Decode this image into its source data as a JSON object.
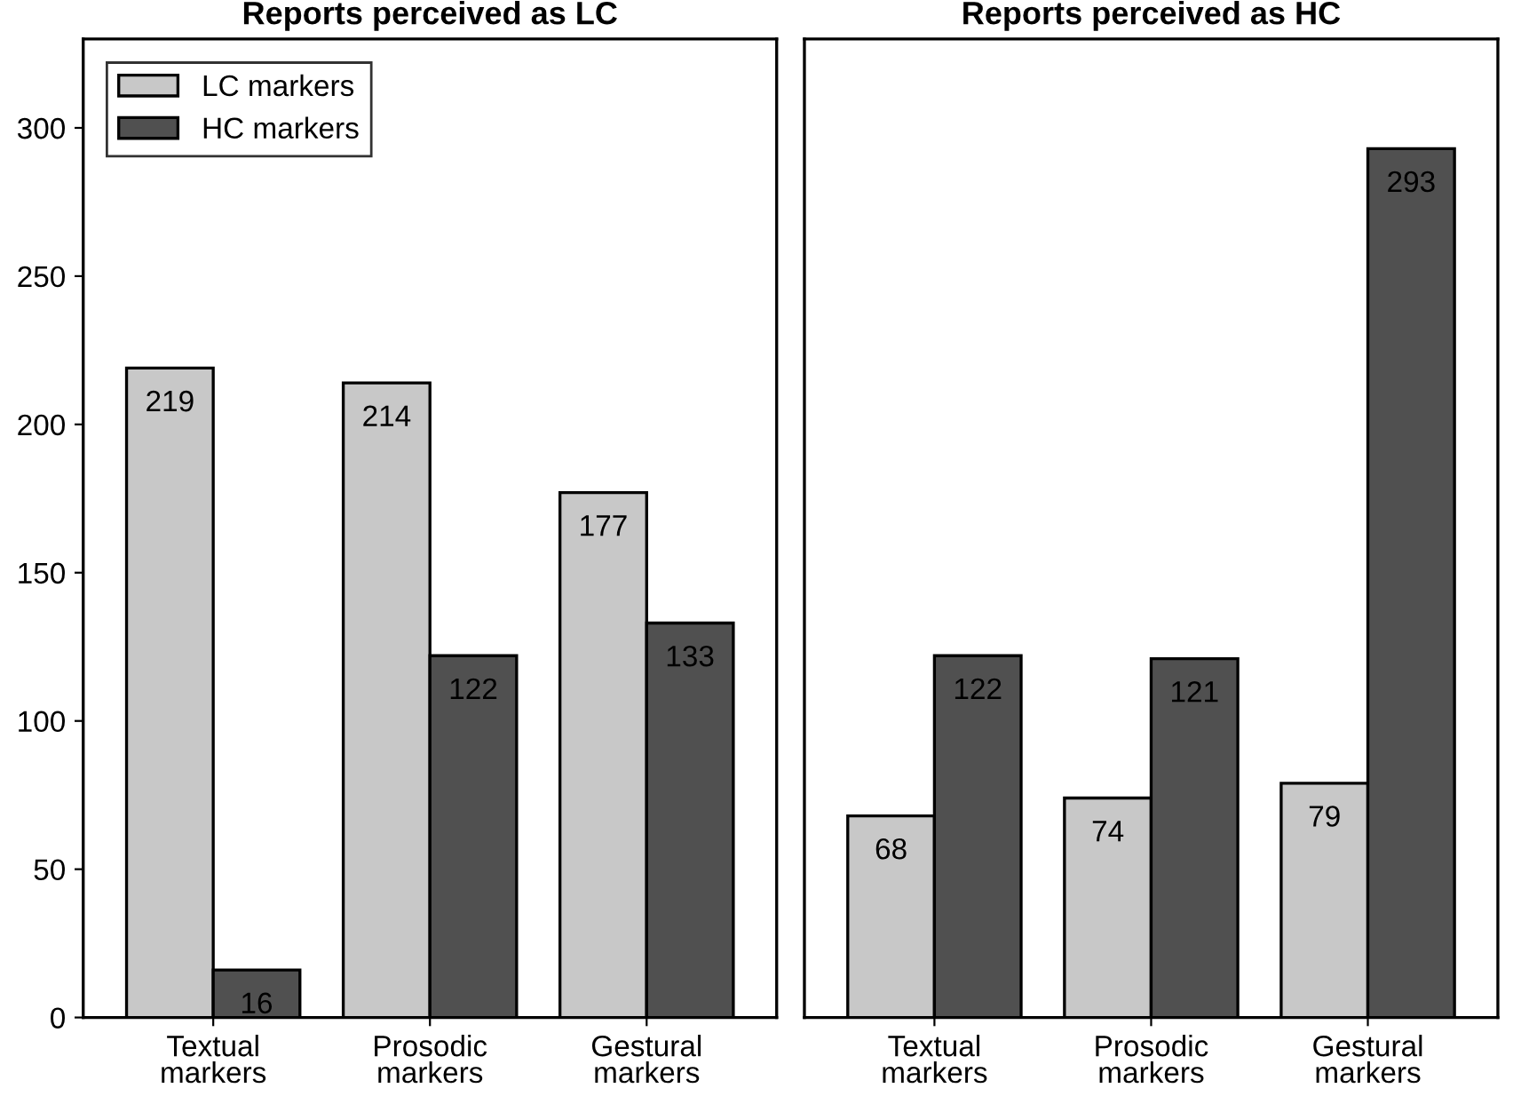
{
  "chart_data": [
    {
      "type": "bar",
      "title": "Reports perceived as LC",
      "categories": [
        "Textual\nmarkers",
        "Prosodic\nmarkers",
        "Gestural\nmarkers"
      ],
      "series": [
        {
          "name": "LC markers",
          "color": "#c8c8c8",
          "values": [
            219,
            214,
            177
          ]
        },
        {
          "name": "HC markers",
          "color": "#505050",
          "values": [
            16,
            122,
            133
          ]
        }
      ],
      "ylim": [
        0,
        330
      ],
      "yticks": [
        0,
        50,
        100,
        150,
        200,
        250,
        300
      ],
      "data_labels": true,
      "legend": "top left",
      "grid": false
    },
    {
      "type": "bar",
      "title": "Reports perceived as HC",
      "categories": [
        "Textual\nmarkers",
        "Prosodic\nmarkers",
        "Gestural\nmarkers"
      ],
      "series": [
        {
          "color": "#c8c8c8",
          "values": [
            68,
            74,
            79
          ]
        },
        {
          "color": "#505050",
          "values": [
            122,
            121,
            293
          ]
        }
      ],
      "ylim": [
        0,
        330
      ],
      "yticks": [
        0,
        50,
        100,
        150,
        200,
        250,
        300
      ],
      "data_labels": true,
      "tick_labels": "x",
      "grid": false
    }
  ]
}
